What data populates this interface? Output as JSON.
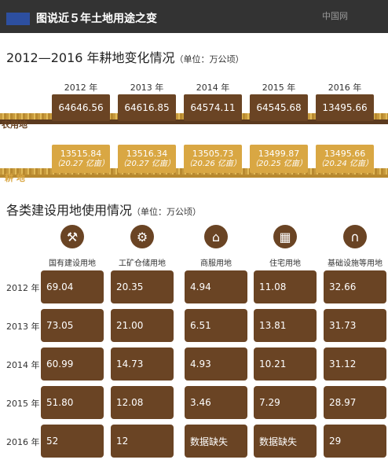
{
  "header": {
    "title": "图说近５年土地用途之变",
    "logo": "中国网"
  },
  "farmland": {
    "title": "2012—2016 年耕地变化情况",
    "unit": "（单位：万公顷）",
    "years": [
      "2012 年",
      "2013 年",
      "2014 年",
      "2015 年",
      "2016 年"
    ],
    "row1_label": "农用地",
    "row2_label": "耕 地",
    "agri_values": [
      "64646.56",
      "64616.85",
      "64574.11",
      "64545.68",
      "13495.66"
    ],
    "arable_values": [
      "13515.84",
      "13516.34",
      "13505.73",
      "13499.87",
      "13495.66"
    ],
    "arable_mu": [
      "（20.27 亿亩）",
      "（20.27 亿亩）",
      "（20.26 亿亩）",
      "（20.25 亿亩）",
      "（20.24 亿亩）"
    ]
  },
  "construction": {
    "title": "各类建设用地使用情况",
    "unit": "（单位：万公顷）",
    "categories": [
      "国有建设用地",
      "工矿仓储用地",
      "商服用地",
      "住宅用地",
      "基础设施等用地"
    ],
    "icons": [
      "crane-icon",
      "wheelbarrow-icon",
      "bank-icon",
      "building-icon",
      "bridge-icon"
    ],
    "years": [
      "2012 年",
      "2013 年",
      "2014 年",
      "2015 年",
      "2016 年"
    ],
    "table": [
      [
        "69.04",
        "20.35",
        "4.94",
        "11.08",
        "32.66"
      ],
      [
        "73.05",
        "21.00",
        "6.51",
        "13.81",
        "31.73"
      ],
      [
        "60.99",
        "14.73",
        "4.93",
        "10.21",
        "31.12"
      ],
      [
        "51.80",
        "12.08",
        "3.46",
        "7.29",
        "28.97"
      ],
      [
        "52",
        "12",
        "数据缺失",
        "数据缺失",
        "29"
      ]
    ]
  },
  "colors": {
    "brown": "#6a4424",
    "gold": "#d9a743",
    "header": "#333333",
    "accent": "#2d4fa0"
  },
  "chart_data": [
    {
      "type": "table",
      "title": "2012—2016 年耕地变化情况",
      "unit": "万公顷",
      "categories": [
        "2012 年",
        "2013 年",
        "2014 年",
        "2015 年",
        "2016 年"
      ],
      "series": [
        {
          "name": "农用地",
          "values": [
            64646.56,
            64616.85,
            64574.11,
            64545.68,
            13495.66
          ]
        },
        {
          "name": "耕 地",
          "values": [
            13515.84,
            13516.34,
            13505.73,
            13499.87,
            13495.66
          ]
        }
      ]
    },
    {
      "type": "table",
      "title": "各类建设用地使用情况",
      "unit": "万公顷",
      "categories": [
        "2012 年",
        "2013 年",
        "2014 年",
        "2015 年",
        "2016 年"
      ],
      "series": [
        {
          "name": "国有建设用地",
          "values": [
            69.04,
            73.05,
            60.99,
            51.8,
            52
          ]
        },
        {
          "name": "工矿仓储用地",
          "values": [
            20.35,
            21.0,
            14.73,
            12.08,
            12
          ]
        },
        {
          "name": "商服用地",
          "values": [
            4.94,
            6.51,
            4.93,
            3.46,
            null
          ]
        },
        {
          "name": "住宅用地",
          "values": [
            11.08,
            13.81,
            10.21,
            7.29,
            null
          ]
        },
        {
          "name": "基础设施等用地",
          "values": [
            32.66,
            31.73,
            31.12,
            28.97,
            29
          ]
        }
      ]
    }
  ]
}
